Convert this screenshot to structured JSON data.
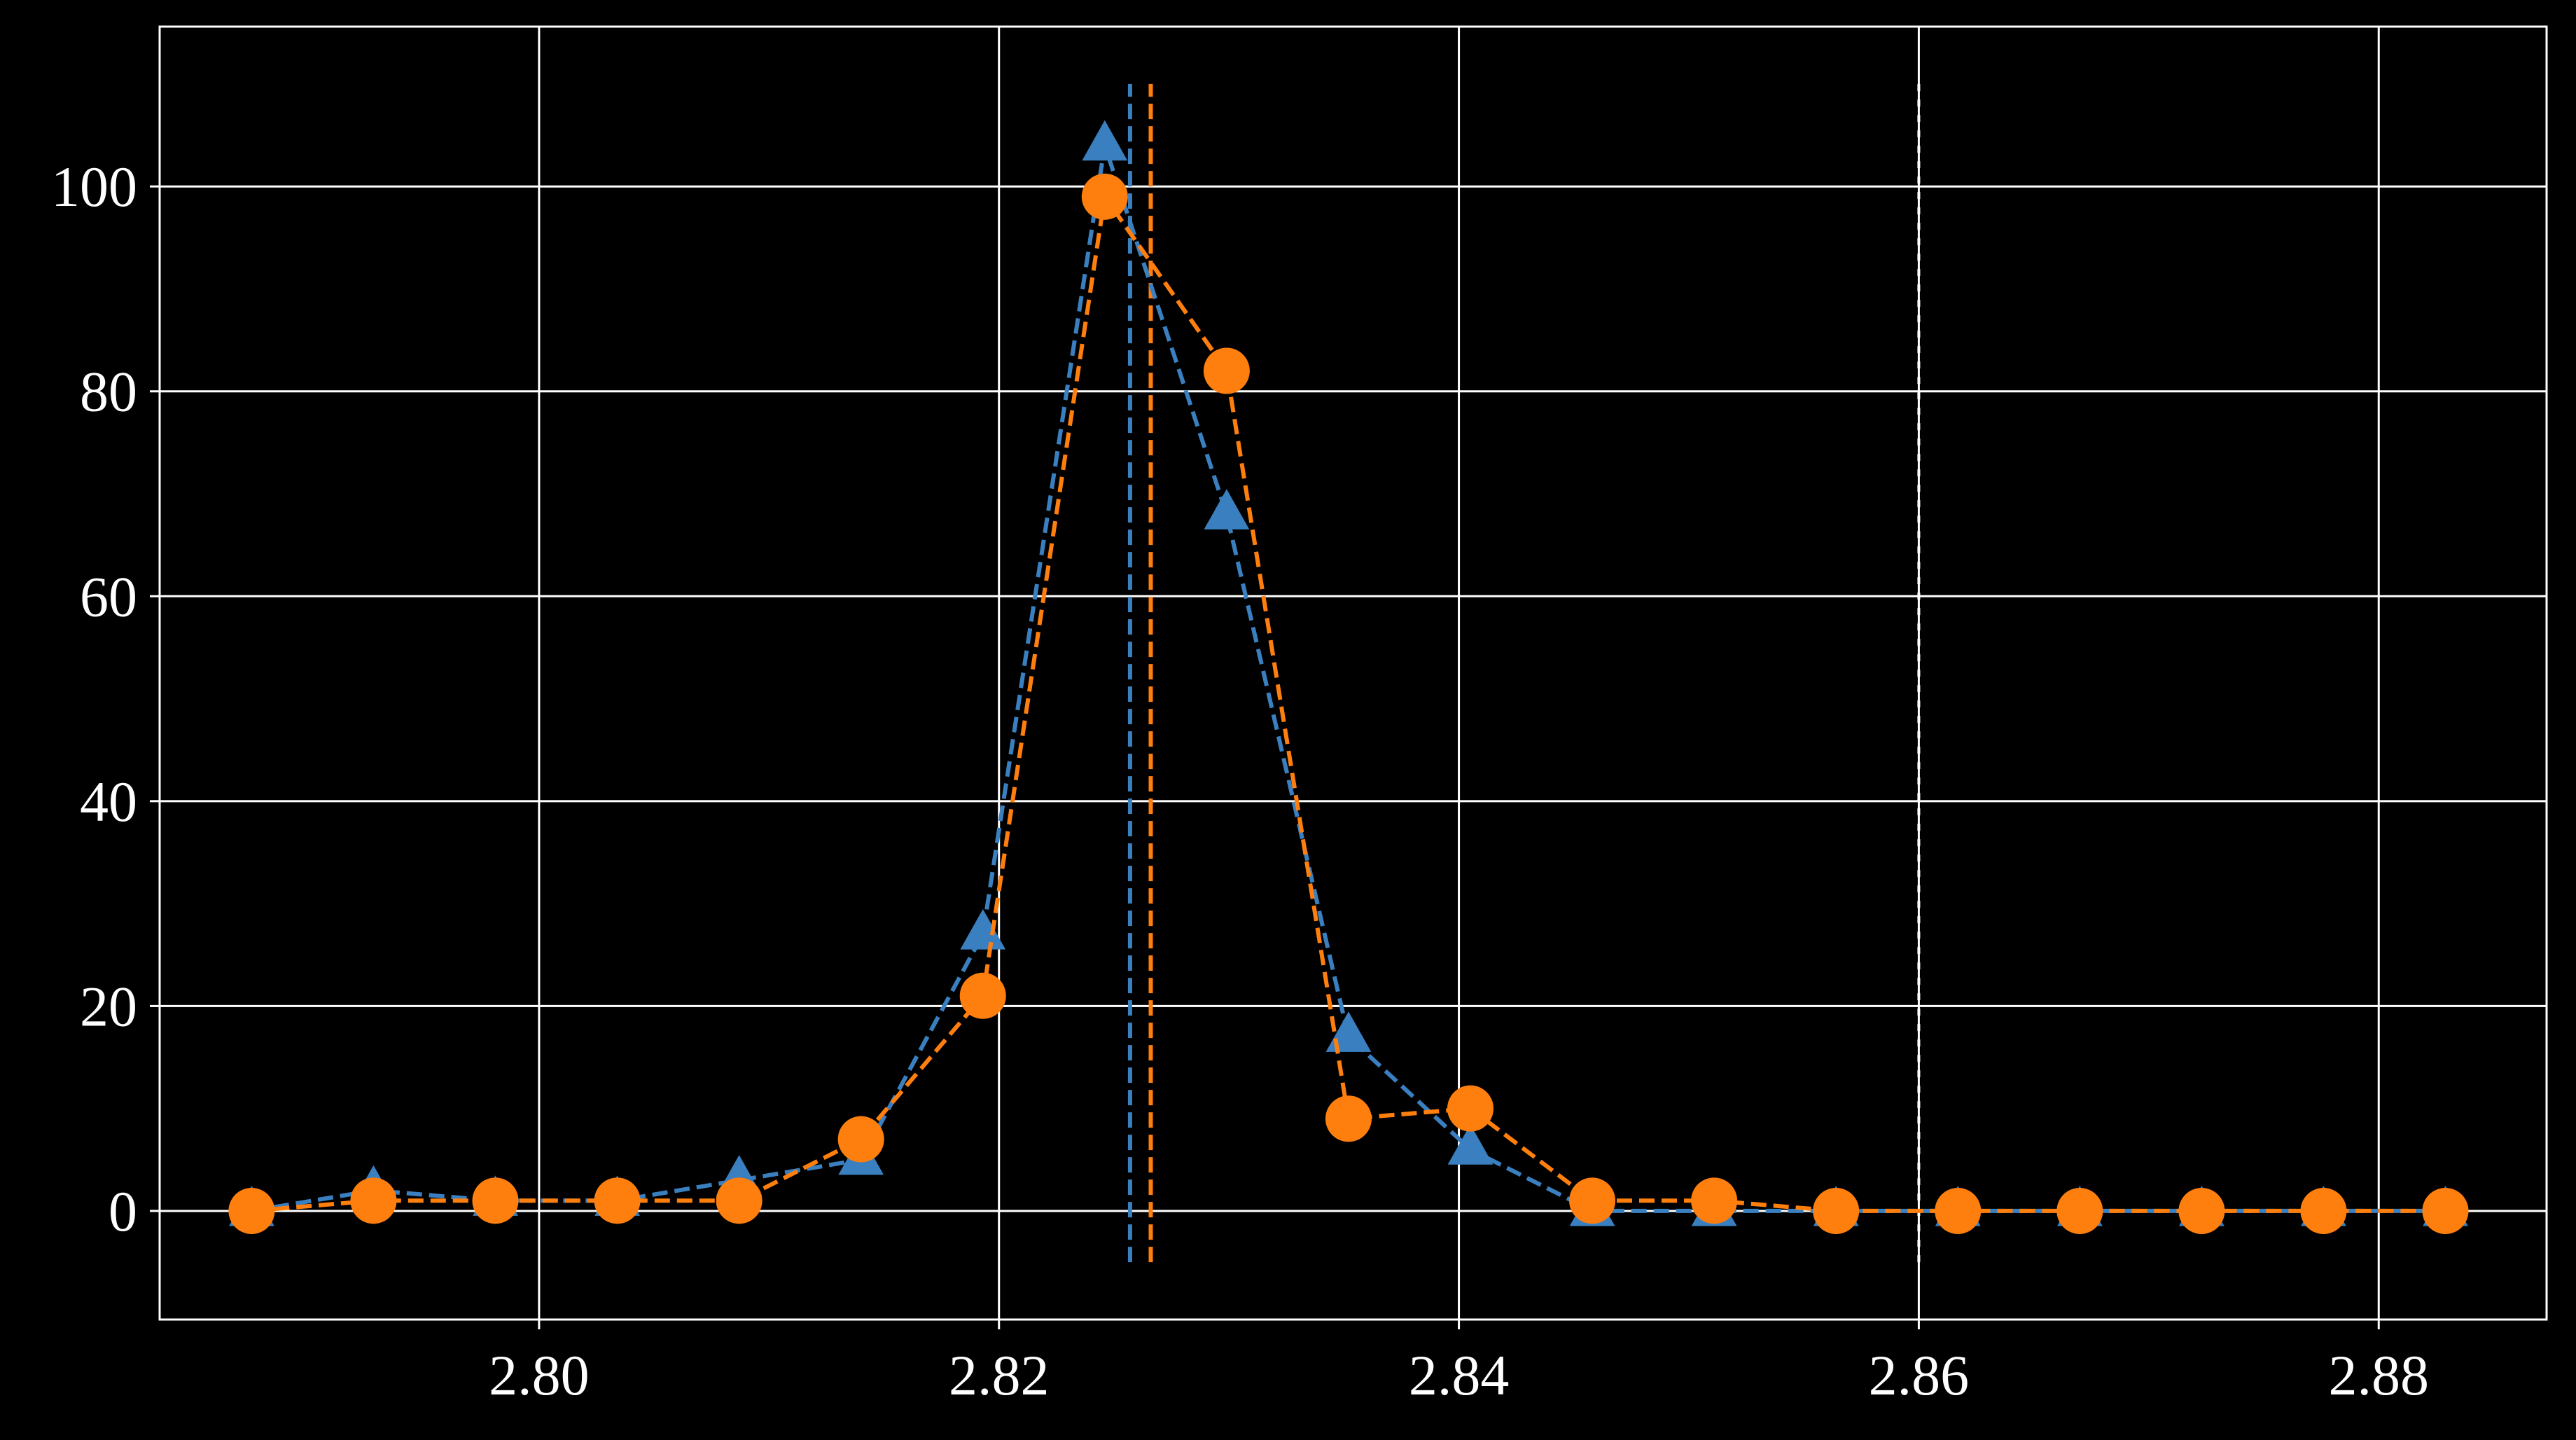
{
  "chart_data": {
    "type": "line",
    "title": "",
    "xlabel": "",
    "ylabel": "",
    "xlim": [
      2.7835,
      2.8873
    ],
    "ylim": [
      -10.6,
      115.6
    ],
    "x_ticks": [
      2.8,
      2.82,
      2.84,
      2.86,
      2.88
    ],
    "x_tick_labels": [
      "2.80",
      "2.82",
      "2.84",
      "2.86",
      "2.88"
    ],
    "y_ticks": [
      0,
      20,
      40,
      60,
      80,
      100
    ],
    "y_tick_labels": [
      "0",
      "20",
      "40",
      "60",
      "80",
      "100"
    ],
    "grid": true,
    "colors": {
      "background": "#000000",
      "axes": "#ffffff",
      "grid": "#ffffff"
    },
    "series": [
      {
        "marker": "triangle",
        "color": "#3a80c0",
        "line_style": "dashed",
        "x": [
          2.7875,
          2.7928,
          2.7981,
          2.8034,
          2.8087,
          2.814,
          2.8193,
          2.8246,
          2.8299,
          2.8352,
          2.8405,
          2.8458,
          2.8511,
          2.8564,
          2.8617,
          2.867,
          2.8723,
          2.8776,
          2.8829
        ],
        "y": [
          0,
          2,
          1,
          1,
          3,
          5,
          27,
          104,
          68,
          17,
          6,
          0,
          0,
          0,
          0,
          0,
          0,
          0,
          0
        ]
      },
      {
        "marker": "circle",
        "color": "#ff7f0e",
        "line_style": "dashed",
        "x": [
          2.7875,
          2.7928,
          2.7981,
          2.8034,
          2.8087,
          2.814,
          2.8193,
          2.8246,
          2.8299,
          2.8352,
          2.8405,
          2.8458,
          2.8511,
          2.8564,
          2.8617,
          2.867,
          2.8723,
          2.8776,
          2.8829
        ],
        "y": [
          0,
          1,
          1,
          1,
          1,
          7,
          21,
          99,
          82,
          9,
          10,
          1,
          1,
          0,
          0,
          0,
          0,
          0,
          0
        ]
      }
    ],
    "vertical_lines": [
      {
        "x": 2.8257,
        "color": "#3a80c0",
        "style": "dashed",
        "y_range": [
          -5,
          110
        ]
      },
      {
        "x": 2.8266,
        "color": "#ff7f0e",
        "style": "dashed",
        "y_range": [
          -5,
          110
        ]
      },
      {
        "x": 2.86,
        "color": "#ffffff",
        "style": "dotted",
        "y_range": [
          -5,
          110
        ]
      }
    ]
  }
}
